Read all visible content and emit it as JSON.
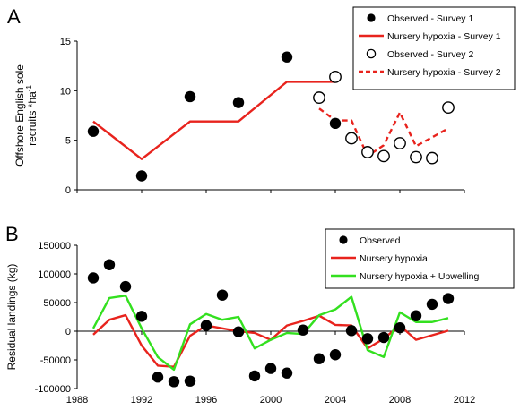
{
  "chart_data": [
    {
      "type": "scatter",
      "panel_label": "A",
      "ylabel": "Offshore English sole recruits *ha",
      "ylabel_superscript": "-1",
      "xlim": [
        1988,
        2012
      ],
      "ylim": [
        0,
        15
      ],
      "yticks": [
        0,
        5,
        10,
        15
      ],
      "grid": false,
      "legend_position": "top-right",
      "series": [
        {
          "name": "Observed - Survey 1",
          "kind": "points",
          "marker": "filled-circle",
          "color": "#000000",
          "x": [
            1989,
            1992,
            1995,
            1998,
            2001,
            2004
          ],
          "y": [
            5.9,
            1.4,
            9.4,
            8.8,
            13.4,
            6.7
          ]
        },
        {
          "name": "Nursery hypoxia - Survey 1",
          "kind": "line",
          "style": "solid",
          "color": "#e8231d",
          "x": [
            1989,
            1992,
            1995,
            1998,
            2001,
            2004
          ],
          "y": [
            6.9,
            3.1,
            6.9,
            6.9,
            10.9,
            10.9
          ]
        },
        {
          "name": "Observed - Survey 2",
          "kind": "points",
          "marker": "open-circle",
          "color": "#000000",
          "x": [
            2003,
            2004,
            2005,
            2006,
            2007,
            2008,
            2009,
            2010,
            2011
          ],
          "y": [
            9.3,
            11.4,
            5.2,
            3.8,
            3.4,
            4.7,
            3.3,
            3.2,
            8.3
          ]
        },
        {
          "name": "Nursery hypoxia - Survey 2",
          "kind": "line",
          "style": "dashed",
          "color": "#e8231d",
          "x": [
            2003,
            2004,
            2005,
            2006,
            2007,
            2008,
            2009,
            2011
          ],
          "y": [
            8.2,
            7.0,
            7.0,
            3.4,
            4.5,
            7.8,
            4.4,
            6.2
          ]
        }
      ]
    },
    {
      "type": "scatter",
      "panel_label": "B",
      "ylabel": "Residual landings (kg)",
      "xlim": [
        1988,
        2012
      ],
      "ylim": [
        -100000,
        150000
      ],
      "xticks": [
        1988,
        1992,
        1996,
        2000,
        2004,
        2008,
        2012
      ],
      "yticks": [
        -100000,
        -50000,
        0,
        50000,
        100000,
        150000
      ],
      "grid": false,
      "legend_position": "top-right",
      "series": [
        {
          "name": "Observed",
          "kind": "points",
          "marker": "filled-circle",
          "color": "#000000",
          "x": [
            1989,
            1990,
            1991,
            1992,
            1993,
            1994,
            1995,
            1996,
            1997,
            1998,
            1999,
            2000,
            2001,
            2002,
            2003,
            2004,
            2005,
            2006,
            2007,
            2008,
            2009,
            2010,
            2011
          ],
          "y": [
            93000,
            116000,
            78000,
            26000,
            -80000,
            -88000,
            -87000,
            10000,
            63000,
            -1000,
            -78000,
            -65000,
            -73000,
            2000,
            -48000,
            -41000,
            1000,
            -13000,
            -11000,
            6000,
            27000,
            47000,
            57000
          ]
        },
        {
          "name": "Nursery hypoxia",
          "kind": "line",
          "style": "solid",
          "color": "#e8231d",
          "x": [
            1989,
            1990,
            1991,
            1992,
            1993,
            1994,
            1995,
            1996,
            1997,
            1998,
            1999,
            2000,
            2001,
            2002,
            2003,
            2004,
            2005,
            2006,
            2007,
            2008,
            2009,
            2010,
            2011
          ],
          "y": [
            -6000,
            20000,
            28000,
            -25000,
            -60000,
            -62000,
            -8000,
            10000,
            5000,
            0,
            -3000,
            -15000,
            10000,
            18000,
            27000,
            11000,
            10000,
            -30000,
            -13000,
            10000,
            -15000,
            -7000,
            1000
          ]
        },
        {
          "name": "Nursery hypoxia + Upwelling",
          "kind": "line",
          "style": "solid",
          "color": "#33e01f",
          "x": [
            1989,
            1990,
            1991,
            1992,
            1993,
            1994,
            1995,
            1996,
            1997,
            1998,
            1999,
            2000,
            2001,
            2002,
            2003,
            2004,
            2005,
            2006,
            2007,
            2008,
            2009,
            2010,
            2011
          ],
          "y": [
            5000,
            58000,
            62000,
            5000,
            -45000,
            -67000,
            12000,
            30000,
            20000,
            25000,
            -30000,
            -15000,
            -3000,
            -5000,
            28000,
            38000,
            60000,
            -33000,
            -45000,
            33000,
            16000,
            16000,
            23000
          ]
        }
      ]
    }
  ]
}
